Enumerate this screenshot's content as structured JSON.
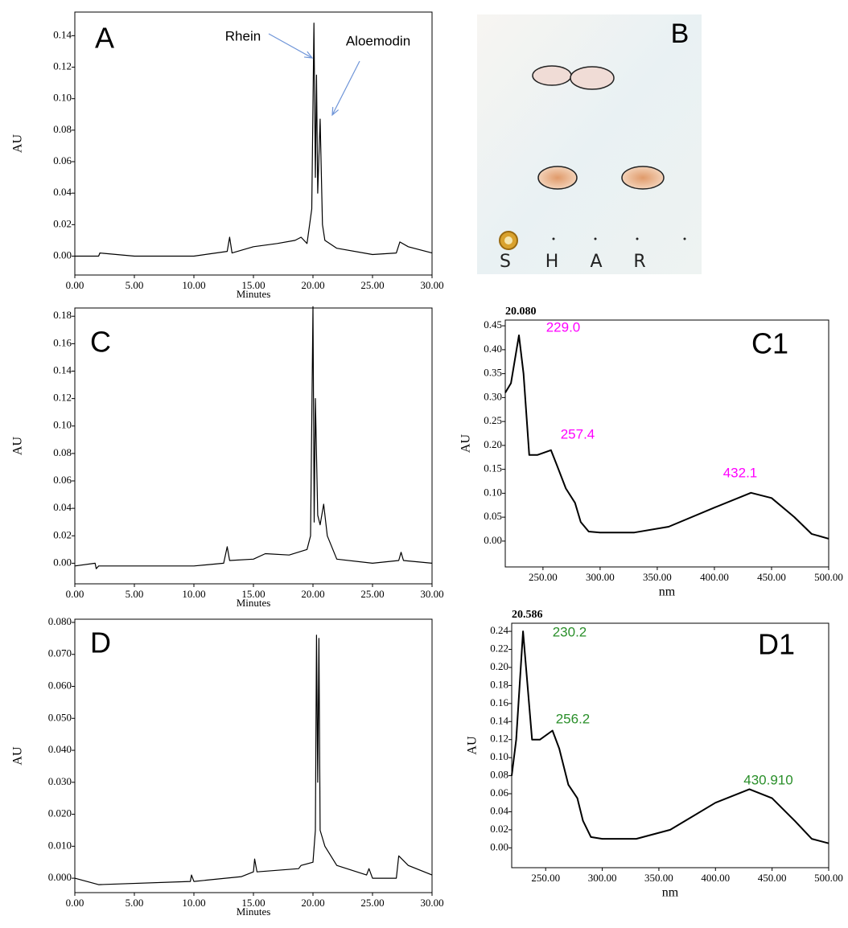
{
  "chart_data": [
    {
      "type": "line",
      "label": "A",
      "x_label": "Minutes",
      "y_label": "AU",
      "annotations": [
        "Rhein",
        "Aloemodin"
      ],
      "annotation_color": "#000000",
      "arrow_color": "#6f95d8",
      "color": "#000000",
      "x": [
        0,
        2,
        2.1,
        5,
        10,
        12.8,
        13,
        13.2,
        15,
        17,
        18.5,
        19,
        19.5,
        19.9,
        20.08,
        20.2,
        20.3,
        20.4,
        20.6,
        20.8,
        21,
        22,
        25,
        27,
        27.3,
        28,
        30
      ],
      "values": [
        0,
        0,
        0.002,
        0,
        0,
        0.003,
        0.012,
        0.002,
        0.006,
        0.008,
        0.01,
        0.012,
        0.008,
        0.03,
        0.148,
        0.05,
        0.115,
        0.04,
        0.087,
        0.02,
        0.01,
        0.005,
        0.001,
        0.002,
        0.009,
        0.006,
        0.002
      ],
      "xlim": [
        0,
        30
      ],
      "ylim": [
        -0.012,
        0.155
      ],
      "xticks": [
        {
          "value": 0,
          "label": "0.00"
        },
        {
          "value": 5,
          "label": "5.00"
        },
        {
          "value": 10,
          "label": "10.00"
        },
        {
          "value": 15,
          "label": "15.00"
        },
        {
          "value": 20,
          "label": "20.00"
        },
        {
          "value": 25,
          "label": "25.00"
        },
        {
          "value": 30,
          "label": "30.00"
        }
      ],
      "yticks": [
        {
          "value": 0,
          "label": "0.00"
        },
        {
          "value": 0.02,
          "label": "0.02"
        },
        {
          "value": 0.04,
          "label": "0.04"
        },
        {
          "value": 0.06,
          "label": "0.06"
        },
        {
          "value": 0.08,
          "label": "0.08"
        },
        {
          "value": 0.1,
          "label": "0.10"
        },
        {
          "value": 0.12,
          "label": "0.12"
        },
        {
          "value": 0.14,
          "label": "0.14"
        }
      ]
    },
    {
      "type": "line",
      "label": "C",
      "x_label": "Minutes",
      "y_label": "AU",
      "color": "#000000",
      "x": [
        0,
        1.7,
        1.8,
        2,
        10,
        12.5,
        12.8,
        13,
        15,
        16,
        18,
        19.5,
        19.8,
        20,
        20.1,
        20.2,
        20.4,
        20.6,
        20.9,
        21.2,
        22,
        25,
        27.2,
        27.4,
        27.6,
        30
      ],
      "values": [
        -0.002,
        0,
        -0.004,
        -0.002,
        -0.002,
        0,
        0.012,
        0.002,
        0.003,
        0.007,
        0.006,
        0.01,
        0.02,
        0.187,
        0.03,
        0.12,
        0.035,
        0.028,
        0.043,
        0.02,
        0.003,
        0,
        0.002,
        0.008,
        0.002,
        0
      ],
      "xlim": [
        0,
        30
      ],
      "ylim": [
        -0.015,
        0.186
      ],
      "xticks": [
        {
          "value": 0,
          "label": "0.00"
        },
        {
          "value": 5,
          "label": "5.00"
        },
        {
          "value": 10,
          "label": "10.00"
        },
        {
          "value": 15,
          "label": "15.00"
        },
        {
          "value": 20,
          "label": "20.00"
        },
        {
          "value": 25,
          "label": "25.00"
        },
        {
          "value": 30,
          "label": "30.00"
        }
      ],
      "yticks": [
        {
          "value": 0,
          "label": "0.00"
        },
        {
          "value": 0.02,
          "label": "0.02"
        },
        {
          "value": 0.04,
          "label": "0.04"
        },
        {
          "value": 0.06,
          "label": "0.06"
        },
        {
          "value": 0.08,
          "label": "0.08"
        },
        {
          "value": 0.1,
          "label": "0.10"
        },
        {
          "value": 0.12,
          "label": "0.12"
        },
        {
          "value": 0.14,
          "label": "0.14"
        },
        {
          "value": 0.16,
          "label": "0.16"
        },
        {
          "value": 0.18,
          "label": "0.18"
        }
      ]
    },
    {
      "type": "line",
      "label": "D",
      "x_label": "Minutes",
      "y_label": "AU",
      "color": "#000000",
      "x": [
        0,
        2,
        9.7,
        9.8,
        10,
        14,
        15,
        15.1,
        15.3,
        18.8,
        19,
        20,
        20.2,
        20.3,
        20.4,
        20.5,
        20.6,
        21,
        22,
        24.5,
        24.7,
        25,
        27,
        27.2,
        28,
        30
      ],
      "values": [
        0,
        -0.002,
        -0.001,
        0.001,
        -0.001,
        0.0005,
        0.002,
        0.006,
        0.002,
        0.003,
        0.004,
        0.005,
        0.015,
        0.076,
        0.03,
        0.075,
        0.015,
        0.01,
        0.004,
        0.001,
        0.003,
        0,
        0,
        0.007,
        0.004,
        0.001
      ],
      "xlim": [
        0,
        30
      ],
      "ylim": [
        -0.0045,
        0.081
      ],
      "xticks": [
        {
          "value": 0,
          "label": "0.00"
        },
        {
          "value": 5,
          "label": "5.00"
        },
        {
          "value": 10,
          "label": "10.00"
        },
        {
          "value": 15,
          "label": "15.00"
        },
        {
          "value": 20,
          "label": "20.00"
        },
        {
          "value": 25,
          "label": "25.00"
        },
        {
          "value": 30,
          "label": "30.00"
        }
      ],
      "yticks": [
        {
          "value": 0,
          "label": "0.000"
        },
        {
          "value": 0.01,
          "label": "0.010"
        },
        {
          "value": 0.02,
          "label": "0.020"
        },
        {
          "value": 0.03,
          "label": "0.030"
        },
        {
          "value": 0.04,
          "label": "0.040"
        },
        {
          "value": 0.05,
          "label": "0.050"
        },
        {
          "value": 0.06,
          "label": "0.060"
        },
        {
          "value": 0.07,
          "label": "0.070"
        },
        {
          "value": 0.08,
          "label": "0.080"
        }
      ]
    },
    {
      "type": "line",
      "title": "20.080",
      "label": "C1",
      "x_label": "nm",
      "y_label": "AU",
      "annotations": [
        "229.0",
        "257.4",
        "432.1"
      ],
      "annotation_color": "#ff00ff",
      "color": "#000000",
      "x": [
        217,
        222,
        229,
        233,
        238,
        245,
        257,
        262,
        270,
        278,
        283,
        290,
        300,
        330,
        360,
        400,
        432,
        450,
        470,
        485,
        500
      ],
      "values": [
        0.31,
        0.33,
        0.43,
        0.35,
        0.18,
        0.18,
        0.19,
        0.16,
        0.11,
        0.08,
        0.04,
        0.02,
        0.018,
        0.018,
        0.03,
        0.07,
        0.101,
        0.09,
        0.05,
        0.015,
        0.005
      ],
      "xlim": [
        217,
        500
      ],
      "ylim": [
        -0.054,
        0.462
      ],
      "xticks": [
        {
          "value": 250,
          "label": "250.00"
        },
        {
          "value": 300,
          "label": "300.00"
        },
        {
          "value": 350,
          "label": "350.00"
        },
        {
          "value": 400,
          "label": "400.00"
        },
        {
          "value": 450,
          "label": "450.00"
        },
        {
          "value": 500,
          "label": "500.00"
        }
      ],
      "yticks": [
        {
          "value": 0,
          "label": "0.00"
        },
        {
          "value": 0.05,
          "label": "0.05"
        },
        {
          "value": 0.1,
          "label": "0.10"
        },
        {
          "value": 0.15,
          "label": "0.15"
        },
        {
          "value": 0.2,
          "label": "0.20"
        },
        {
          "value": 0.25,
          "label": "0.25"
        },
        {
          "value": 0.3,
          "label": "0.30"
        },
        {
          "value": 0.35,
          "label": "0.35"
        },
        {
          "value": 0.4,
          "label": "0.40"
        },
        {
          "value": 0.45,
          "label": "0.45"
        }
      ]
    },
    {
      "type": "line",
      "title": "20.586",
      "label": "D1",
      "x_label": "nm",
      "y_label": "AU",
      "annotations": [
        "230.2",
        "256.2",
        "430.910"
      ],
      "annotation_color": "#2a8f2a",
      "color": "#000000",
      "x": [
        220,
        224,
        230,
        234,
        238,
        245,
        256,
        262,
        270,
        278,
        283,
        290,
        300,
        330,
        360,
        400,
        430,
        450,
        470,
        485,
        500
      ],
      "values": [
        0.08,
        0.12,
        0.24,
        0.18,
        0.12,
        0.12,
        0.13,
        0.11,
        0.07,
        0.055,
        0.03,
        0.012,
        0.01,
        0.01,
        0.02,
        0.05,
        0.065,
        0.055,
        0.03,
        0.01,
        0.005
      ],
      "xlim": [
        220,
        500
      ],
      "ylim": [
        -0.022,
        0.249
      ],
      "xticks": [
        {
          "value": 250,
          "label": "250.00"
        },
        {
          "value": 300,
          "label": "300.00"
        },
        {
          "value": 350,
          "label": "350.00"
        },
        {
          "value": 400,
          "label": "400.00"
        },
        {
          "value": 450,
          "label": "450.00"
        },
        {
          "value": 500,
          "label": "500.00"
        }
      ],
      "yticks": [
        {
          "value": 0,
          "label": "0.00"
        },
        {
          "value": 0.02,
          "label": "0.02"
        },
        {
          "value": 0.04,
          "label": "0.04"
        },
        {
          "value": 0.06,
          "label": "0.06"
        },
        {
          "value": 0.08,
          "label": "0.08"
        },
        {
          "value": 0.1,
          "label": "0.10"
        },
        {
          "value": 0.12,
          "label": "0.12"
        },
        {
          "value": 0.14,
          "label": "0.14"
        },
        {
          "value": 0.16,
          "label": "0.16"
        },
        {
          "value": 0.18,
          "label": "0.18"
        },
        {
          "value": 0.2,
          "label": "0.20"
        },
        {
          "value": 0.22,
          "label": "0.22"
        },
        {
          "value": 0.24,
          "label": "0.24"
        }
      ]
    }
  ],
  "photo": {
    "label": "B",
    "lanes": [
      "S",
      "H",
      "A",
      "R"
    ]
  }
}
